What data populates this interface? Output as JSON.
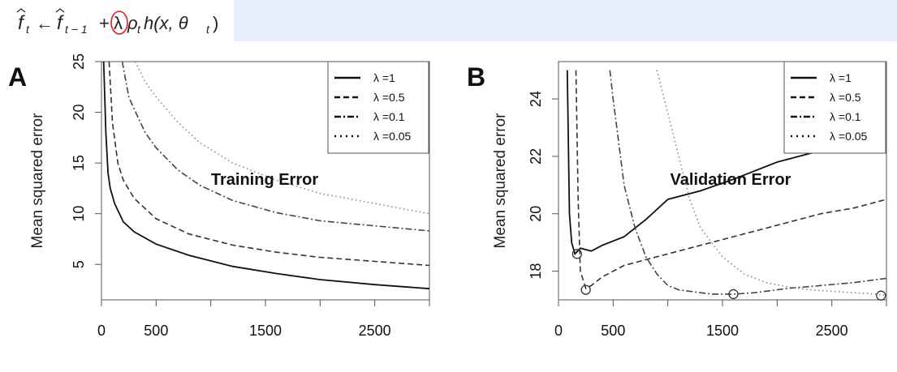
{
  "formula": {
    "f_hat": "f",
    "sub_t": "t",
    "arrow": "←",
    "sub_t_minus_1": "t − 1",
    "plus": "+",
    "lambda": "λ",
    "rho": "ρ",
    "rho_sub": "t",
    "h_expr": "h(x, θ",
    "theta_sub": "t",
    "close": ")",
    "highlight_color": "#e02020"
  },
  "chart_data": [
    {
      "type": "line",
      "panel_label": "A",
      "annotation": "Training Error",
      "ylabel": "Mean squared error",
      "xlabel": "",
      "xlim": [
        0,
        3000
      ],
      "ylim": [
        1.5,
        25
      ],
      "x_ticks": [
        0,
        500,
        1500,
        2500
      ],
      "y_ticks": [
        5,
        10,
        15,
        20,
        25
      ],
      "legend_position": "top-right",
      "series": [
        {
          "name": "λ =1",
          "dash": "solid",
          "x": [
            20,
            40,
            60,
            80,
            120,
            200,
            300,
            500,
            800,
            1200,
            1600,
            2000,
            2500,
            3000
          ],
          "y": [
            25,
            18,
            14,
            12.5,
            11,
            9.2,
            8.2,
            7,
            5.9,
            4.8,
            4.1,
            3.5,
            3,
            2.6
          ]
        },
        {
          "name": "λ =0.5",
          "dash": "dashed",
          "x": [
            70,
            100,
            150,
            200,
            300,
            500,
            800,
            1200,
            1600,
            2000,
            2500,
            3000
          ],
          "y": [
            25,
            19,
            15,
            13.3,
            11.5,
            9.5,
            8,
            6.9,
            6.2,
            5.7,
            5.3,
            4.9
          ]
        },
        {
          "name": "λ =0.1",
          "dash": "dashdot",
          "x": [
            190,
            250,
            300,
            400,
            500,
            700,
            900,
            1200,
            1600,
            2000,
            2500,
            3000
          ],
          "y": [
            25,
            21.5,
            20.3,
            18,
            16.5,
            14.3,
            12.8,
            11.3,
            10.1,
            9.3,
            8.8,
            8.3
          ]
        },
        {
          "name": "λ =0.05",
          "dash": "dotted",
          "x": [
            310,
            400,
            500,
            700,
            900,
            1200,
            1600,
            2000,
            2500,
            3000
          ],
          "y": [
            25,
            23,
            21.5,
            19,
            17,
            15,
            13.3,
            12,
            11,
            10
          ]
        }
      ]
    },
    {
      "type": "line",
      "panel_label": "B",
      "annotation": "Validation Error",
      "ylabel": "Mean squared error",
      "xlabel": "",
      "xlim": [
        0,
        3000
      ],
      "ylim": [
        17,
        25.3
      ],
      "x_ticks": [
        0,
        500,
        1500,
        2500
      ],
      "y_ticks": [
        18,
        20,
        22,
        24
      ],
      "legend_position": "top-right",
      "series": [
        {
          "name": "λ =1",
          "dash": "solid",
          "x": [
            80,
            100,
            120,
            150,
            200,
            300,
            400,
            600,
            800,
            1000,
            1300,
            1600,
            2000,
            2400,
            2650,
            2800
          ],
          "y": [
            25,
            20,
            19,
            18.6,
            18.8,
            18.7,
            18.9,
            19.2,
            19.8,
            20.5,
            20.8,
            21.2,
            21.8,
            22.2,
            22.3,
            22.5
          ],
          "minimum": {
            "x": 170,
            "y": 18.6
          }
        },
        {
          "name": "λ =0.5",
          "dash": "dashed",
          "x": [
            160,
            180,
            200,
            250,
            300,
            400,
            600,
            800,
            1000,
            1200,
            1500,
            1800,
            2100,
            2400,
            2700,
            3000
          ],
          "y": [
            25,
            20.5,
            18,
            17.4,
            17.5,
            17.8,
            18.2,
            18.4,
            18.6,
            18.8,
            19.1,
            19.4,
            19.7,
            20,
            20.2,
            20.5
          ],
          "minimum": {
            "x": 250,
            "y": 17.35
          }
        },
        {
          "name": "λ =0.1",
          "dash": "dashdot",
          "x": [
            470,
            500,
            550,
            600,
            700,
            800,
            900,
            1000,
            1100,
            1200,
            1400,
            1600,
            1800,
            2100,
            2400,
            2700,
            3000
          ],
          "y": [
            25,
            24,
            22.5,
            21,
            19.5,
            18.5,
            17.9,
            17.5,
            17.35,
            17.3,
            17.2,
            17.2,
            17.25,
            17.4,
            17.5,
            17.6,
            17.75
          ],
          "minimum": {
            "x": 1600,
            "y": 17.2
          }
        },
        {
          "name": "λ =0.05",
          "dash": "dotted",
          "x": [
            900,
            1000,
            1100,
            1200,
            1300,
            1500,
            1700,
            1900,
            2100,
            2300,
            2500,
            2700,
            2900,
            3000
          ],
          "y": [
            25,
            23.5,
            22,
            20.5,
            19.5,
            18.5,
            17.9,
            17.6,
            17.45,
            17.35,
            17.3,
            17.25,
            17.2,
            17.15
          ],
          "minimum": {
            "x": 2950,
            "y": 17.15
          }
        }
      ]
    }
  ]
}
